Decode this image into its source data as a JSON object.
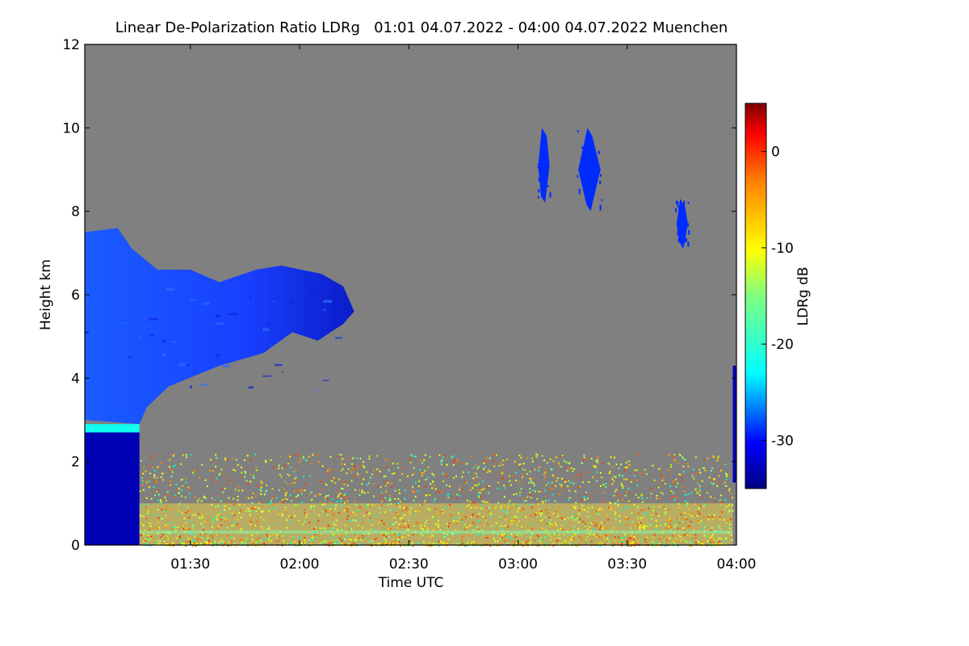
{
  "chart_data": {
    "type": "heatmap",
    "title": "Linear De-Polarization Ratio LDRg   01:01 04.07.2022 - 04:00 04.07.2022 Muenchen",
    "xlabel": "Time UTC",
    "ylabel": "Height km",
    "colorbar_label": "LDRg dB",
    "xlim": [
      "01:01",
      "04:00"
    ],
    "x_ticks": [
      "01:30",
      "02:00",
      "02:30",
      "03:00",
      "03:30",
      "04:00"
    ],
    "ylim": [
      0,
      12
    ],
    "y_ticks": [
      "0",
      "2",
      "4",
      "6",
      "8",
      "10",
      "12"
    ],
    "colorbar_range": [
      -35,
      5
    ],
    "colorbar_ticks": [
      "0",
      "-10",
      "-20",
      "-30"
    ],
    "background_color": "#808080",
    "features": [
      {
        "name": "aerosol-layer",
        "time_start": "01:01",
        "time_end": "02:15",
        "height_base_km": 3.0,
        "height_top_km": 7.5,
        "ldr_db": -30
      },
      {
        "name": "boundary-layer-early",
        "time_start": "01:01",
        "time_end": "01:16",
        "height_base_km": 0.0,
        "height_top_km": 2.7,
        "ldr_db": -33
      },
      {
        "name": "thin-layer",
        "time_start": "01:01",
        "time_end": "01:16",
        "height_base_km": 2.7,
        "height_top_km": 2.9,
        "ldr_db": -22
      },
      {
        "name": "noisy-boundary-layer",
        "time_start": "01:16",
        "time_end": "03:59",
        "height_base_km": 0.0,
        "height_top_km": 2.0,
        "ldr_db": -10
      },
      {
        "name": "high-cloud-1",
        "time_start": "03:06",
        "time_end": "03:08",
        "height_base_km": 8.2,
        "height_top_km": 10.0,
        "ldr_db": -29
      },
      {
        "name": "high-cloud-2",
        "time_start": "03:17",
        "time_end": "03:22",
        "height_base_km": 8.0,
        "height_top_km": 10.0,
        "ldr_db": -29
      },
      {
        "name": "high-cloud-3",
        "time_start": "03:44",
        "time_end": "03:46",
        "height_base_km": 7.1,
        "height_top_km": 8.3,
        "ldr_db": -29
      },
      {
        "name": "late-layer",
        "time_start": "03:59",
        "time_end": "04:00",
        "height_base_km": 1.5,
        "height_top_km": 4.3,
        "ldr_db": -33
      }
    ]
  }
}
